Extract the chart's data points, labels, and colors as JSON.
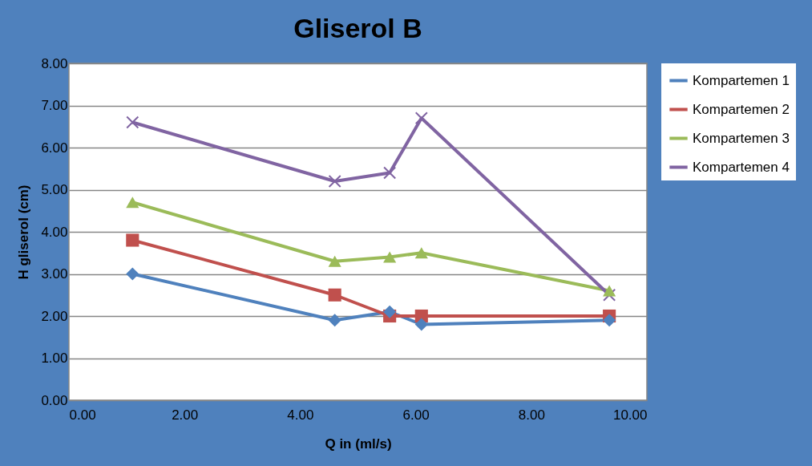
{
  "chart_data": {
    "type": "line",
    "title": "Gliserol B",
    "xlabel": "Q in (ml/s)",
    "ylabel": "H gliserol (cm)",
    "x": [
      1.1,
      4.6,
      5.55,
      6.1,
      9.35
    ],
    "series": [
      {
        "name": "Kompartemen 1",
        "color": "#4f81bd",
        "marker": "diamond",
        "values": [
          3.0,
          1.9,
          2.1,
          1.8,
          1.9
        ]
      },
      {
        "name": "Kompartemen 2",
        "color": "#c0504d",
        "marker": "square",
        "values": [
          3.8,
          2.5,
          2.0,
          2.0,
          2.0
        ]
      },
      {
        "name": "Kompartemen 3",
        "color": "#9bbb59",
        "marker": "triangle",
        "values": [
          4.7,
          3.3,
          3.4,
          3.5,
          2.6
        ]
      },
      {
        "name": "Kompartemen 4",
        "color": "#8064a2",
        "marker": "cross",
        "values": [
          6.6,
          5.2,
          5.4,
          6.7,
          2.5
        ]
      }
    ],
    "xlim": [
      0,
      10
    ],
    "xticks": [
      {
        "value": 0,
        "label": "0.00"
      },
      {
        "value": 2,
        "label": "2.00"
      },
      {
        "value": 4,
        "label": "4.00"
      },
      {
        "value": 6,
        "label": "6.00"
      },
      {
        "value": 8,
        "label": "8.00"
      },
      {
        "value": 10,
        "label": "10.00"
      }
    ],
    "ylim": [
      0,
      8
    ],
    "yticks": [
      {
        "value": 0,
        "label": "0.00"
      },
      {
        "value": 1,
        "label": "1.00"
      },
      {
        "value": 2,
        "label": "2.00"
      },
      {
        "value": 3,
        "label": "3.00"
      },
      {
        "value": 4,
        "label": "4.00"
      },
      {
        "value": 5,
        "label": "5.00"
      },
      {
        "value": 6,
        "label": "6.00"
      },
      {
        "value": 7,
        "label": "7.00"
      },
      {
        "value": 8,
        "label": "8.00"
      }
    ],
    "grid": "y",
    "legend": "right",
    "line_style": "solid"
  }
}
